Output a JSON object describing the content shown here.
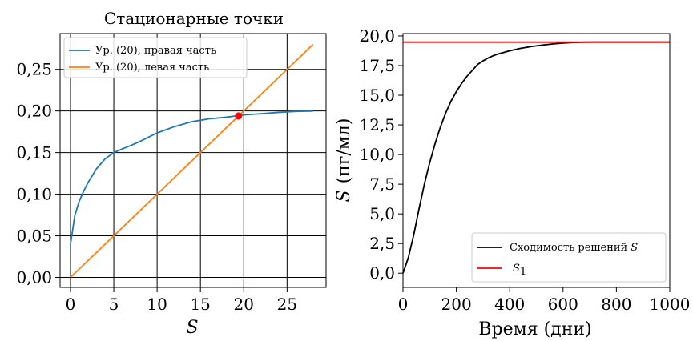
{
  "chart_data": [
    {
      "type": "line",
      "title": "Стационарные точки",
      "xlabel": "S",
      "ylabel": "",
      "xlim": [
        -1.2,
        29.5
      ],
      "ylim": [
        -0.012,
        0.293
      ],
      "xticks": [
        0,
        5,
        10,
        15,
        20,
        25
      ],
      "xtick_labels": [
        "0",
        "5",
        "10",
        "15",
        "20",
        "25"
      ],
      "yticks": [
        0.0,
        0.05,
        0.1,
        0.15,
        0.2,
        0.25
      ],
      "ytick_labels": [
        "0,00",
        "0,05",
        "0,10",
        "0,15",
        "0,20",
        "0,25"
      ],
      "grid": true,
      "legend_position": "top-left",
      "series": [
        {
          "name": "Ур. (20), правая часть",
          "color": "#1f77b4",
          "x": [
            0,
            0.5,
            1,
            1.5,
            2,
            3,
            4,
            5,
            6,
            7,
            8,
            10,
            12,
            14,
            16,
            18,
            20,
            22,
            24,
            26,
            28
          ],
          "y": [
            0.04,
            0.0745,
            0.0913,
            0.1032,
            0.1135,
            0.1305,
            0.1425,
            0.15,
            0.1545,
            0.1587,
            0.1633,
            0.1736,
            0.1812,
            0.1871,
            0.1905,
            0.1925,
            0.1952,
            0.1967,
            0.1983,
            0.1995,
            0.1998
          ]
        },
        {
          "name": "Ур. (20), левая часть",
          "color": "#ff7f0e",
          "x": [
            0,
            28
          ],
          "y": [
            0,
            0.28
          ]
        }
      ],
      "points": [
        {
          "x": 19.4,
          "y": 0.194,
          "color": "#ff0000"
        }
      ]
    },
    {
      "type": "line",
      "title": "",
      "xlabel": "Время (дни)",
      "ylabel_symbol": "S",
      "ylabel": "(пг/мл)",
      "xlim": [
        0,
        1000
      ],
      "ylim": [
        -1.2,
        20.2
      ],
      "xticks": [
        0,
        200,
        400,
        600,
        800,
        1000
      ],
      "xtick_labels": [
        "0",
        "200",
        "400",
        "600",
        "800",
        "1000"
      ],
      "yticks": [
        0,
        2.5,
        5,
        7.5,
        10,
        12.5,
        15,
        17.5,
        20
      ],
      "ytick_labels": [
        "0,0",
        "2,5",
        "5,0",
        "7,5",
        "10,0",
        "12,5",
        "15,0",
        "17,5",
        "20,0"
      ],
      "grid": false,
      "legend_position": "bottom-right",
      "series": [
        {
          "name": "Сходимость решений",
          "name_symbol": "S",
          "color": "#000000",
          "x": [
            0,
            20,
            40,
            60,
            80,
            100,
            120,
            140,
            160,
            180,
            200,
            220,
            240,
            260,
            280,
            300,
            320,
            340,
            360,
            380,
            400,
            440,
            480,
            520,
            560,
            600,
            640,
            680,
            720,
            800,
            900,
            1000
          ],
          "y": [
            0,
            1.3,
            3.2,
            5.4,
            7.5,
            9.3,
            10.9,
            12.3,
            13.5,
            14.5,
            15.3,
            16.0,
            16.6,
            17.1,
            17.6,
            17.9,
            18.15,
            18.35,
            18.5,
            18.62,
            18.75,
            18.95,
            19.1,
            19.22,
            19.32,
            19.4,
            19.45,
            19.47,
            19.48,
            19.48,
            19.48,
            19.48
          ]
        },
        {
          "name": "S1",
          "name_symbol": "S",
          "name_subscript": "1",
          "color": "#ff0000",
          "x": [
            0,
            1000
          ],
          "y": [
            19.48,
            19.48
          ]
        }
      ]
    }
  ]
}
